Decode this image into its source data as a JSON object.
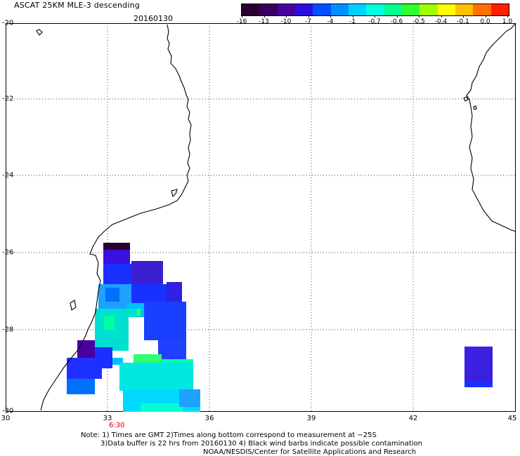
{
  "title": "ASCAT 25KM MLE-3 descending",
  "date": "20160130",
  "colorbar": {
    "labels": [
      "-16",
      "-13",
      "-10",
      "-7",
      "-4",
      "-1",
      "-0.7",
      "-0.6",
      "-0.5",
      "-0.4",
      "-0.1",
      "0.0",
      "1.0"
    ],
    "colors": [
      "#2a0030",
      "#3a0060",
      "#4a00a0",
      "#2a10e0",
      "#0050ff",
      "#0090ff",
      "#00d0ff",
      "#00ffe0",
      "#00ff90",
      "#30ff30",
      "#a0ff00",
      "#ffff00",
      "#ffc000",
      "#ff7000",
      "#ff2000"
    ]
  },
  "map": {
    "lat_labels": [
      "-20",
      "-22",
      "-24",
      "-26",
      "-28",
      "-30"
    ],
    "lon_labels": [
      "30",
      "33",
      "36",
      "39",
      "42",
      "45"
    ],
    "time_label": "6:30"
  },
  "notes": {
    "line1": "Note: 1) Times are GMT 2)Times along bottom correspond to measurement at −25S",
    "line2": "3)Data buffer is 22 hrs from 20160130 4) Black wind barbs indicate possible contamination",
    "line3": "NOAA/NESDIS/Center for Satellite Applications and Research"
  }
}
